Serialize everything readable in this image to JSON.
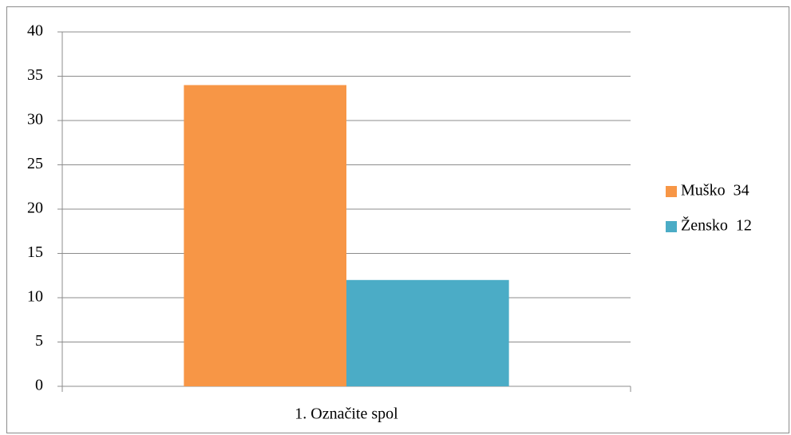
{
  "chart_data": {
    "type": "bar",
    "categories": [
      "1. Označite spol"
    ],
    "series": [
      {
        "name": "Muško  34",
        "color": "#f79646",
        "values": [
          34
        ]
      },
      {
        "name": "Žensko  12",
        "color": "#4bacc6",
        "values": [
          12
        ]
      }
    ],
    "ylim": [
      0,
      40
    ],
    "yticks": [
      0,
      5,
      10,
      15,
      20,
      25,
      30,
      35,
      40
    ],
    "grid": true,
    "legend": "right"
  }
}
